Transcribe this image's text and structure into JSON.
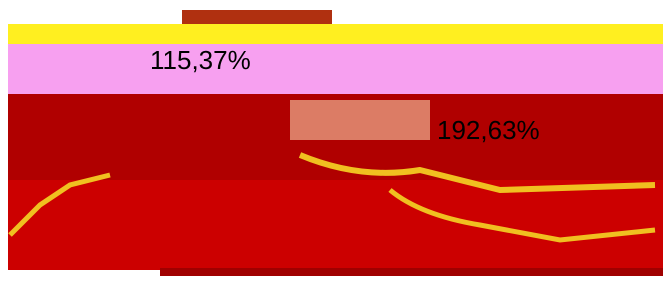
{
  "labels": {
    "left": "115,37%",
    "right": "192,63%"
  }
}
